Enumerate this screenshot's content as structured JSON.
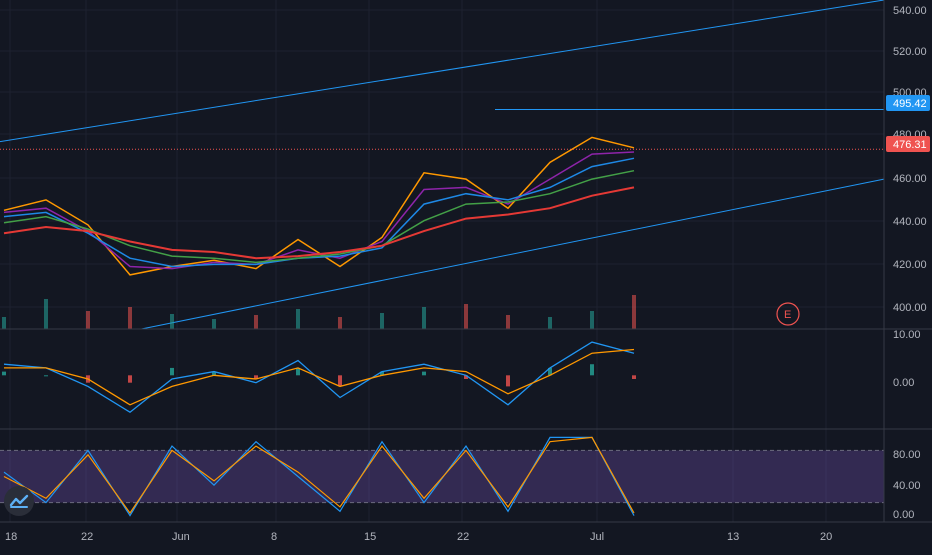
{
  "colors": {
    "background": "#131722",
    "grid": "#1e2230",
    "axis_text": "#b2b5be",
    "separator": "#363a45",
    "trendline": "#2196f3",
    "price_line": "#ef5350",
    "ma_red": "#e53935",
    "ma_green": "#43a047",
    "ma_blue": "#1e88e5",
    "ma_purple": "#8e24aa",
    "ma_orange": "#ff9800",
    "volume_up": "#26a69a",
    "volume_down": "#ef5350",
    "macd_line": "#2196f3",
    "macd_signal": "#ff9800",
    "stoch_k": "#2196f3",
    "stoch_d": "#ff9800",
    "stoch_band": "#7e57c2"
  },
  "price_axis": {
    "ticks": [
      "540.00",
      "520.00",
      "500.00",
      "480.00",
      "460.00",
      "440.00",
      "420.00",
      "400.00"
    ],
    "current_price_label": "476.31",
    "level_label": "495.42"
  },
  "macd_axis": {
    "ticks": [
      "10.00",
      "0.00"
    ]
  },
  "stoch_axis": {
    "ticks": [
      "80.00",
      "40.00",
      "0.00"
    ]
  },
  "time_axis": {
    "ticks": [
      "18",
      "22",
      "Jun",
      "8",
      "15",
      "22",
      "Jul",
      "13",
      "20"
    ]
  },
  "earnings_marker": "E",
  "logo_icon": "tradingview-logo-icon",
  "chart_data": [
    {
      "type": "line",
      "title": "",
      "ylabel": "",
      "ylim": [
        390,
        548
      ],
      "x": [
        "May 15",
        "May 18",
        "May 22",
        "May 26",
        "Jun 1",
        "Jun 4",
        "Jun 8",
        "Jun 11",
        "Jun 15",
        "Jun 18",
        "Jun 22",
        "Jun 25",
        "Jun 29",
        "Jul 1",
        "Jul 2",
        "Jul 3"
      ],
      "series": [
        {
          "values": [
            447,
            452,
            440,
            416,
            420,
            423,
            419,
            433,
            420,
            434,
            465,
            462,
            448,
            470,
            482,
            477
          ]
        },
        {
          "values": [
            446,
            448,
            437,
            420,
            419,
            422,
            421,
            428,
            424,
            432,
            457,
            458,
            450,
            462,
            474,
            475
          ]
        },
        {
          "values": [
            444,
            446,
            436,
            424,
            420,
            421,
            421,
            424,
            425,
            429,
            450,
            455,
            452,
            458,
            468,
            472
          ]
        },
        {
          "values": [
            441,
            444,
            438,
            430,
            425,
            424,
            422,
            424,
            426,
            430,
            442,
            450,
            451,
            455,
            462,
            466
          ]
        },
        {
          "values": [
            436,
            439,
            437,
            432,
            428,
            427,
            424,
            425,
            427,
            430,
            437,
            443,
            445,
            448,
            454,
            458
          ]
        }
      ],
      "reference_lines": {
        "current_price": 476.31,
        "level": 495.42
      },
      "trend_channel": {
        "upper": [
          [
            0,
            480
          ],
          [
            1,
            548
          ]
        ],
        "lower": [
          [
            0.16,
            390
          ],
          [
            1,
            462
          ]
        ]
      },
      "volume": [
        12,
        30,
        18,
        22,
        15,
        10,
        14,
        20,
        12,
        16,
        22,
        25,
        14,
        12,
        18,
        34
      ]
    },
    {
      "type": "line",
      "title": "",
      "ylim": [
        -14,
        12
      ],
      "x": [
        "May 15",
        "May 18",
        "May 22",
        "May 26",
        "Jun 1",
        "Jun 4",
        "Jun 8",
        "Jun 11",
        "Jun 15",
        "Jun 18",
        "Jun 22",
        "Jun 25",
        "Jun 29",
        "Jul 1",
        "Jul 2",
        "Jul 3"
      ],
      "series": [
        {
          "values": [
            3,
            2,
            -3,
            -10,
            -1,
            1,
            -2,
            4,
            -6,
            1,
            3,
            0,
            -8,
            2,
            9,
            6
          ]
        },
        {
          "values": [
            2,
            2,
            -1,
            -8,
            -3,
            0,
            -1,
            2,
            -3,
            0,
            2,
            1,
            -5,
            0,
            6,
            7
          ]
        }
      ]
    },
    {
      "type": "line",
      "title": "",
      "ylim": [
        0,
        100
      ],
      "x": [
        "May 15",
        "May 18",
        "May 22",
        "May 26",
        "Jun 1",
        "Jun 4",
        "Jun 8",
        "Jun 11",
        "Jun 15",
        "Jun 18",
        "Jun 22",
        "Jun 25",
        "Jun 29",
        "Jul 1",
        "Jul 2",
        "Jul 3"
      ],
      "series": [
        {
          "values": [
            55,
            20,
            80,
            5,
            85,
            40,
            90,
            50,
            10,
            90,
            20,
            85,
            10,
            95,
            95,
            5
          ]
        },
        {
          "values": [
            50,
            25,
            75,
            8,
            80,
            45,
            85,
            55,
            15,
            85,
            25,
            80,
            15,
            90,
            95,
            8
          ]
        }
      ],
      "bands": [
        20,
        80
      ]
    }
  ]
}
